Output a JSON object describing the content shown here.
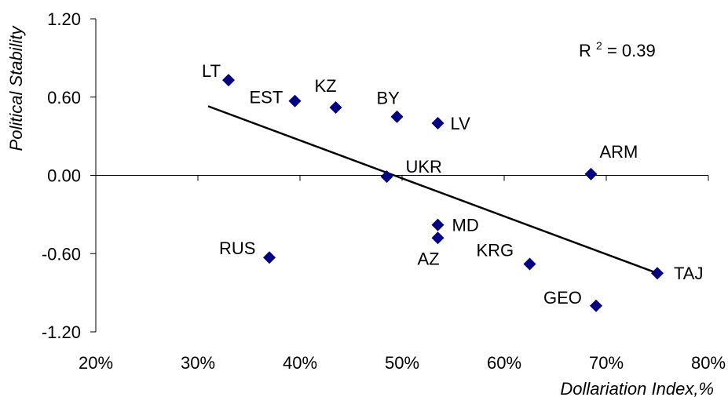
{
  "chart_data": {
    "type": "scatter",
    "xlabel": "Dollariation Index,%",
    "ylabel": "Political Stability",
    "xlim": [
      0.2,
      0.8
    ],
    "ylim": [
      -1.2,
      1.2
    ],
    "x_ticks": [
      0.2,
      0.3,
      0.4,
      0.5,
      0.6,
      0.7,
      0.8
    ],
    "x_tick_labels": [
      "20%",
      "30%",
      "40%",
      "50%",
      "60%",
      "70%",
      "80%"
    ],
    "y_ticks": [
      1.2,
      0.6,
      0.0,
      -0.6,
      -1.2
    ],
    "y_tick_labels": [
      "1.20",
      "0.60",
      "0.00",
      "-0.60",
      "-1.20"
    ],
    "annotation": {
      "base": "R",
      "sup": "2",
      "rest": " = 0.39"
    },
    "point_color": "#000080",
    "line_color": "#000000",
    "points": [
      {
        "label": "LT",
        "x": 0.33,
        "y": 0.73
      },
      {
        "label": "EST",
        "x": 0.395,
        "y": 0.57
      },
      {
        "label": "KZ",
        "x": 0.435,
        "y": 0.52
      },
      {
        "label": "BY",
        "x": 0.495,
        "y": 0.45
      },
      {
        "label": "LV",
        "x": 0.535,
        "y": 0.4
      },
      {
        "label": "ARM",
        "x": 0.685,
        "y": 0.01
      },
      {
        "label": "UKR",
        "x": 0.485,
        "y": -0.01
      },
      {
        "label": "MD",
        "x": 0.535,
        "y": -0.38
      },
      {
        "label": "AZ",
        "x": 0.535,
        "y": -0.48
      },
      {
        "label": "RUS",
        "x": 0.37,
        "y": -0.63
      },
      {
        "label": "KRG",
        "x": 0.625,
        "y": -0.68
      },
      {
        "label": "TAJ",
        "x": 0.75,
        "y": -0.75
      },
      {
        "label": "GEO",
        "x": 0.69,
        "y": -1.0
      }
    ],
    "trendline": [
      {
        "x": 0.31,
        "y": 0.53
      },
      {
        "x": 0.75,
        "y": -0.75
      }
    ]
  }
}
